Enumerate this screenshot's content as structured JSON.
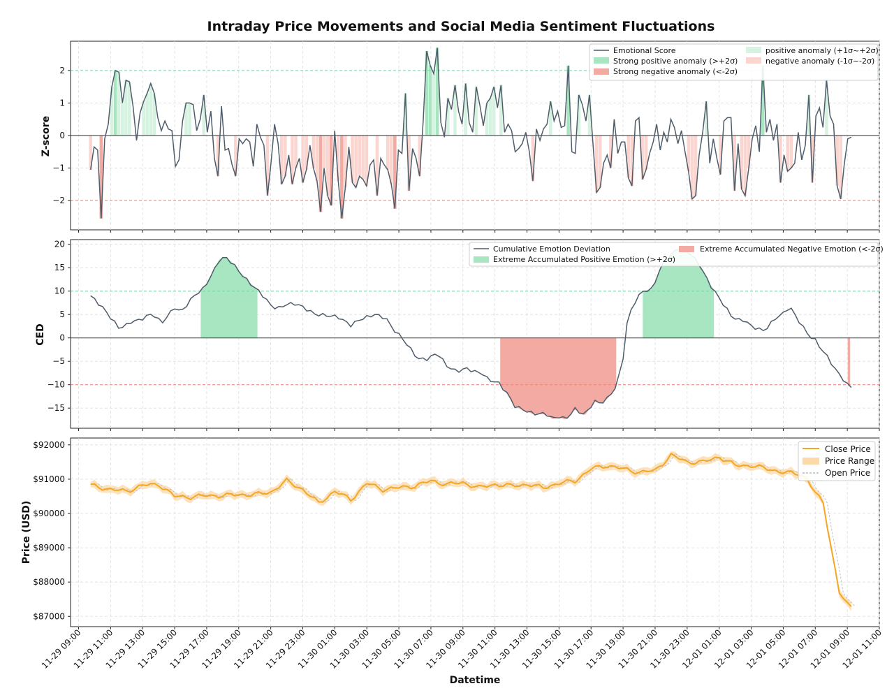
{
  "chart_data": {
    "type": "line",
    "title": "Intraday Price Movements and Social Media Sentiment Fluctuations",
    "xlabel": "Datetime",
    "x_ticks": [
      "11-29 09:00",
      "11-29 11:00",
      "11-29 13:00",
      "11-29 15:00",
      "11-29 17:00",
      "11-29 19:00",
      "11-29 21:00",
      "11-29 23:00",
      "11-30 01:00",
      "11-30 03:00",
      "11-30 05:00",
      "11-30 07:00",
      "11-30 09:00",
      "11-30 11:00",
      "11-30 13:00",
      "11-30 15:00",
      "11-30 17:00",
      "11-30 19:00",
      "11-30 21:00",
      "11-30 23:00",
      "12-01 01:00",
      "12-01 03:00",
      "12-01 05:00",
      "12-01 07:00",
      "12-01 09:00",
      "12-01 11:00"
    ],
    "x_range_hours": [
      -0.5,
      50.0
    ],
    "data_start_hour": 0.75,
    "data_end_hour": 48.25,
    "panels": [
      {
        "name": "zscore",
        "ylabel": "Z-score",
        "ylim": [
          -2.9,
          2.9
        ],
        "yticks": [
          -2,
          -1,
          0,
          1,
          2
        ],
        "ytick_labels": [
          "−2",
          "−1",
          "0",
          "1",
          "2"
        ],
        "thresholds": [
          2,
          -2
        ],
        "series_name": "Emotional Score",
        "legend": [
          "Emotional Score",
          "Strong positive anomaly (>+2σ)",
          "Strong negative anomaly (<-2σ)",
          "positive anomaly (+1σ~+2σ)",
          "negative anomaly (-1σ~-2σ)"
        ],
        "values": [
          -1.05,
          -0.35,
          -0.45,
          -2.55,
          -0.1,
          0.35,
          1.5,
          2.0,
          1.95,
          1.0,
          1.7,
          1.65,
          0.9,
          -0.15,
          0.7,
          1.05,
          1.3,
          1.6,
          1.3,
          0.55,
          0.15,
          0.45,
          0.2,
          0.15,
          -0.95,
          -0.75,
          0.45,
          1.0,
          1.0,
          0.95,
          0.15,
          0.5,
          1.25,
          0.1,
          0.75,
          -0.7,
          -1.25,
          0.9,
          -0.45,
          -0.4,
          -0.9,
          -1.25,
          -0.1,
          -0.25,
          -0.1,
          -0.2,
          -0.95,
          0.35,
          -0.05,
          -0.3,
          -1.85,
          -0.85,
          0.35,
          -0.25,
          -1.5,
          -1.25,
          -0.6,
          -1.5,
          -1.0,
          -0.7,
          -1.45,
          -1.05,
          -0.3,
          -1.0,
          -1.4,
          -2.35,
          -1.0,
          -1.85,
          -2.15,
          0.15,
          -1.4,
          -2.55,
          -1.6,
          -0.35,
          -1.45,
          -1.6,
          -1.25,
          -1.35,
          -1.55,
          -0.9,
          -0.75,
          -1.85,
          -0.7,
          -0.9,
          -1.05,
          -1.5,
          -2.25,
          -0.45,
          -0.55,
          1.3,
          -1.7,
          -0.4,
          -0.7,
          -1.25,
          0.45,
          2.6,
          2.15,
          1.9,
          2.7,
          0.4,
          -0.05,
          1.15,
          0.8,
          1.55,
          0.75,
          0.35,
          1.6,
          0.4,
          0.1,
          1.5,
          0.95,
          0.3,
          1.0,
          1.15,
          1.5,
          0.85,
          1.55,
          0.1,
          0.35,
          0.15,
          -0.5,
          -0.4,
          -0.25,
          0.1,
          -0.5,
          -1.4,
          0.2,
          -0.15,
          0.2,
          0.35,
          1.05,
          0.45,
          0.75,
          0.25,
          0.3,
          2.15,
          -0.5,
          -0.55,
          1.25,
          0.95,
          0.45,
          1.25,
          -0.25,
          -1.75,
          -1.6,
          -0.85,
          -0.6,
          -1.0,
          0.5,
          -0.55,
          -0.2,
          -0.2,
          -1.3,
          -1.55,
          0.45,
          0.55,
          -1.35,
          -1.05,
          -0.55,
          -0.2,
          0.35,
          -0.45,
          0.1,
          -0.2,
          0.5,
          0.25,
          -0.25,
          0.15,
          -0.5,
          -1.1,
          -1.95,
          -1.85,
          -0.6,
          0.1,
          1.05,
          -0.85,
          -0.1,
          -0.7,
          -1.2,
          0.45,
          0.55,
          0.55,
          -1.7,
          -0.25,
          -1.65,
          -1.85,
          -1.0,
          -0.1,
          0.3,
          -0.5,
          2.15,
          0.1,
          0.5,
          -0.15,
          0.35,
          -1.45,
          -0.6,
          -1.1,
          -1.0,
          -0.85,
          0.1,
          -0.75,
          -0.3,
          1.25,
          -1.45,
          0.6,
          0.85,
          0.25,
          1.7,
          0.6,
          0.35,
          -1.55,
          -1.95,
          -0.9,
          -0.1,
          -0.05
        ]
      },
      {
        "name": "ced",
        "ylabel": "CED",
        "ylim": [
          -19.3,
          21.0
        ],
        "yticks": [
          -15,
          -10,
          -5,
          0,
          5,
          10,
          15,
          20
        ],
        "ytick_labels": [
          "−15",
          "−10",
          "−5",
          "0",
          "5",
          "10",
          "15",
          "20"
        ],
        "thresholds": [
          10,
          -10
        ],
        "series_name": "Cumulative Emotion Deviation",
        "legend": [
          "Cumulative Emotion Deviation",
          "Extreme Accumulated Positive Emotion (>+2σ)",
          "Extreme Accumulated Negative Emotion (<-2σ)"
        ],
        "points_hours": [
          0.75,
          1.5,
          2.5,
          2.9,
          3.3,
          3.8,
          4.2,
          4.6,
          5.2,
          6,
          6.4,
          7.2,
          7.8,
          8.4,
          8.8,
          9.2,
          9.6,
          10.2,
          10.6,
          11.4,
          12,
          12.4,
          13,
          13.6,
          14.2,
          14.8,
          15.5,
          16.2,
          17,
          17.6,
          18.5,
          19.2,
          19.6,
          20.2,
          20.6,
          21.2,
          21.8,
          22.4,
          23,
          23.6,
          24.2,
          24.8,
          25.2,
          25.6,
          26.2,
          26.8,
          27.2,
          27.8,
          28.4,
          29.2,
          29.6,
          30,
          30.4,
          31,
          31.6,
          32.2,
          32.6,
          33,
          33.6,
          34,
          34.2,
          34.6,
          35.2,
          35.8,
          36.4,
          37.2,
          37.6,
          38.2,
          38.8,
          39.4,
          40,
          40.4,
          40.8,
          41.2,
          41.6,
          42,
          42.4,
          42.8,
          43.2,
          43.6,
          44,
          44.4,
          44.8,
          45.2,
          45.6,
          46,
          46.4,
          46.8,
          47.2,
          47.6,
          48,
          48.25
        ],
        "points_values": [
          9,
          6.5,
          2.2,
          2.5,
          3.5,
          3.8,
          4.5,
          5.2,
          3.2,
          6.5,
          5.5,
          9,
          10.5,
          14,
          16.8,
          17.2,
          16,
          13.5,
          12,
          9.5,
          7,
          6.2,
          7.2,
          7.3,
          6.2,
          5,
          4.8,
          4.5,
          2.7,
          4,
          5,
          4.2,
          2,
          0,
          -1.8,
          -4.5,
          -4.5,
          -3.2,
          -6,
          -7.2,
          -6.5,
          -7.3,
          -7.5,
          -9,
          -9.5,
          -12,
          -14.5,
          -15.4,
          -16.2,
          -16.2,
          -17.3,
          -16.8,
          -17.4,
          -15.2,
          -16.5,
          -13.5,
          -14,
          -13,
          -10.3,
          -4.2,
          2.5,
          7,
          10,
          10.3,
          15.5,
          18.5,
          19.5,
          18,
          15.5,
          11.5,
          8.5,
          6.5,
          4.5,
          3.8,
          3.8,
          2.5,
          2,
          1.5,
          3,
          4.5,
          5.2,
          6.8,
          4.5,
          2.5,
          0.5,
          -0.5,
          -2.5,
          -4.2,
          -6.5,
          -8.2,
          -10,
          -10.5
        ]
      },
      {
        "name": "price",
        "ylabel": "Price (USD)",
        "ylim": [
          86700,
          92200
        ],
        "yticks": [
          87000,
          88000,
          89000,
          90000,
          91000,
          92000
        ],
        "ytick_labels": [
          "$87000",
          "$88000",
          "$89000",
          "$90000",
          "$91000",
          "$92000"
        ],
        "legend": [
          "Close Price",
          "Price Range",
          "Open Price"
        ],
        "close_points_hours": [
          0.75,
          2,
          3,
          4,
          5,
          6,
          7,
          8,
          9,
          10,
          11,
          12,
          13,
          14,
          15,
          16,
          17,
          18,
          19,
          20,
          21,
          22,
          23,
          24,
          25,
          26,
          27,
          28,
          29,
          30,
          31,
          32,
          33,
          34,
          35,
          36,
          37,
          38,
          39,
          40,
          41,
          42,
          43,
          44,
          45,
          45.5,
          46,
          46.5,
          47,
          47.5,
          48,
          48.25
        ],
        "close_points_values": [
          90820,
          90700,
          90650,
          90820,
          90850,
          90500,
          90480,
          90520,
          90520,
          90550,
          90550,
          90620,
          90950,
          90700,
          90300,
          90650,
          90400,
          90880,
          90700,
          90750,
          90800,
          90950,
          90850,
          90900,
          90750,
          90850,
          90800,
          90850,
          90750,
          90880,
          90950,
          91300,
          91400,
          91300,
          91200,
          91250,
          91700,
          91500,
          91500,
          91650,
          91400,
          91400,
          91300,
          91200,
          91150,
          91000,
          90600,
          90300,
          89000,
          87700,
          87350,
          87250
        ]
      }
    ]
  },
  "legends": {
    "z_col1": [
      "Emotional Score",
      "Strong positive anomaly (>+2σ)",
      "Strong negative anomaly (<-2σ)"
    ],
    "z_col2": [
      "positive anomaly (+1σ~+2σ)",
      "negative anomaly (-1σ~-2σ)"
    ],
    "ced_col1": [
      "Cumulative Emotion Deviation",
      "Extreme Accumulated Positive Emotion (>+2σ)"
    ],
    "ced_col2": [
      "Extreme Accumulated Negative Emotion (<-2σ)"
    ],
    "price": [
      "Close Price",
      "Price Range",
      "Open Price"
    ]
  },
  "colors": {
    "line": "#4f5d6b",
    "pos_strong": "#a8e6c1",
    "neg_strong": "#f2aaa3",
    "pos_mild": "#d6f3e1",
    "neg_mild": "#fbd5cf",
    "price": "#f5a623",
    "price_band": "#fbd9a8",
    "pos_threshold": "#6fd3a2",
    "neg_threshold": "#f08070"
  }
}
